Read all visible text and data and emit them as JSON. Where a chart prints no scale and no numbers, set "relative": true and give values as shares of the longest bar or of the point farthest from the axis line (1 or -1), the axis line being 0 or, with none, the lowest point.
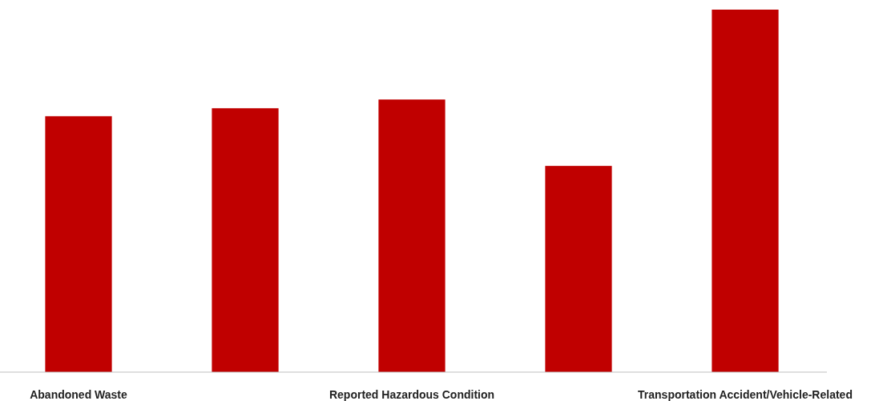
{
  "chart_data": {
    "type": "bar",
    "relative": true,
    "categories": [
      "Abandoned Waste",
      null,
      "Reported Hazardous Condition",
      null,
      "Transportation Accident/Vehicle-Related"
    ],
    "values": [
      0.706,
      0.728,
      0.752,
      0.569,
      1
    ],
    "color": "#c00000",
    "grid": false
  }
}
